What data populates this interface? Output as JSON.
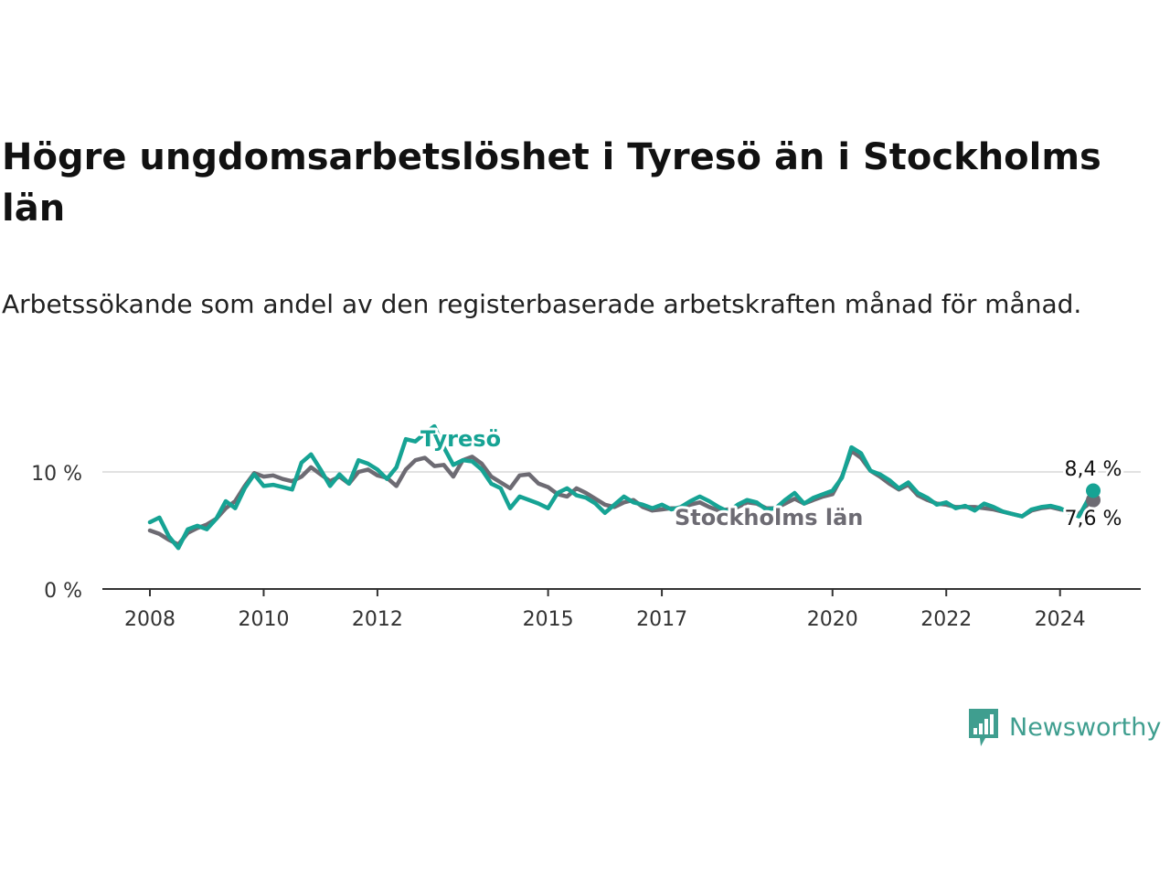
{
  "header": {
    "title": "Högre ungdomsarbetslöshet i Tyresö än i Stockholms län",
    "subtitle": "Arbetssökande som andel av den registerbaserade arbetskraften månad för månad."
  },
  "brand": {
    "name": "Newsworthy",
    "icon": "newsworthy-logo-icon",
    "color": "#3f9e8f"
  },
  "chart_data": {
    "type": "line",
    "x_ticks": [
      "2008",
      "2010",
      "2012",
      "2015",
      "2017",
      "2020",
      "2022",
      "2024"
    ],
    "y_ticks": [
      "0 %",
      "10 %"
    ],
    "ylim": [
      0,
      14
    ],
    "grid": true,
    "series": [
      {
        "name": "Tyresö",
        "color": "#16a394",
        "end_label": "8,4 %",
        "points": [
          [
            "2008-01",
            5.7
          ],
          [
            "2008-03",
            6.1
          ],
          [
            "2008-05",
            4.5
          ],
          [
            "2008-07",
            3.5
          ],
          [
            "2008-09",
            5.1
          ],
          [
            "2008-11",
            5.4
          ],
          [
            "2009-01",
            5.1
          ],
          [
            "2009-03",
            6.0
          ],
          [
            "2009-05",
            7.5
          ],
          [
            "2009-07",
            6.9
          ],
          [
            "2009-09",
            8.6
          ],
          [
            "2009-11",
            9.8
          ],
          [
            "2010-01",
            8.8
          ],
          [
            "2010-03",
            8.9
          ],
          [
            "2010-05",
            8.7
          ],
          [
            "2010-07",
            8.5
          ],
          [
            "2010-09",
            10.8
          ],
          [
            "2010-11",
            11.5
          ],
          [
            "2011-01",
            10.2
          ],
          [
            "2011-03",
            8.8
          ],
          [
            "2011-05",
            9.8
          ],
          [
            "2011-07",
            9.0
          ],
          [
            "2011-09",
            11.0
          ],
          [
            "2011-11",
            10.7
          ],
          [
            "2012-01",
            10.2
          ],
          [
            "2012-03",
            9.4
          ],
          [
            "2012-05",
            10.4
          ],
          [
            "2012-07",
            12.8
          ],
          [
            "2012-09",
            12.6
          ],
          [
            "2012-11",
            13.3
          ],
          [
            "2013-01",
            13.9
          ],
          [
            "2013-03",
            12.1
          ],
          [
            "2013-05",
            10.6
          ],
          [
            "2013-07",
            11.0
          ],
          [
            "2013-09",
            10.9
          ],
          [
            "2013-11",
            10.2
          ],
          [
            "2014-01",
            9.0
          ],
          [
            "2014-03",
            8.6
          ],
          [
            "2014-05",
            6.9
          ],
          [
            "2014-07",
            7.9
          ],
          [
            "2014-09",
            7.6
          ],
          [
            "2014-11",
            7.3
          ],
          [
            "2015-01",
            6.9
          ],
          [
            "2015-03",
            8.2
          ],
          [
            "2015-05",
            8.6
          ],
          [
            "2015-07",
            8.0
          ],
          [
            "2015-09",
            7.8
          ],
          [
            "2015-11",
            7.3
          ],
          [
            "2016-01",
            6.5
          ],
          [
            "2016-03",
            7.2
          ],
          [
            "2016-05",
            7.9
          ],
          [
            "2016-07",
            7.4
          ],
          [
            "2016-09",
            7.2
          ],
          [
            "2016-11",
            6.9
          ],
          [
            "2017-01",
            7.2
          ],
          [
            "2017-03",
            6.8
          ],
          [
            "2017-05",
            7.0
          ],
          [
            "2017-07",
            7.5
          ],
          [
            "2017-09",
            7.9
          ],
          [
            "2017-11",
            7.5
          ],
          [
            "2018-01",
            7.0
          ],
          [
            "2018-03",
            6.6
          ],
          [
            "2018-05",
            7.2
          ],
          [
            "2018-07",
            7.6
          ],
          [
            "2018-09",
            7.4
          ],
          [
            "2018-11",
            6.8
          ],
          [
            "2019-01",
            6.9
          ],
          [
            "2019-03",
            7.6
          ],
          [
            "2019-05",
            8.2
          ],
          [
            "2019-07",
            7.3
          ],
          [
            "2019-09",
            7.8
          ],
          [
            "2019-11",
            8.1
          ],
          [
            "2020-01",
            8.4
          ],
          [
            "2020-03",
            9.5
          ],
          [
            "2020-05",
            12.1
          ],
          [
            "2020-07",
            11.6
          ],
          [
            "2020-09",
            10.1
          ],
          [
            "2020-11",
            9.8
          ],
          [
            "2021-01",
            9.3
          ],
          [
            "2021-03",
            8.6
          ],
          [
            "2021-05",
            9.1
          ],
          [
            "2021-07",
            8.2
          ],
          [
            "2021-09",
            7.8
          ],
          [
            "2021-11",
            7.2
          ],
          [
            "2022-01",
            7.4
          ],
          [
            "2022-03",
            6.9
          ],
          [
            "2022-05",
            7.1
          ],
          [
            "2022-07",
            6.7
          ],
          [
            "2022-09",
            7.3
          ],
          [
            "2022-11",
            7.0
          ],
          [
            "2023-01",
            6.6
          ],
          [
            "2023-03",
            6.4
          ],
          [
            "2023-05",
            6.2
          ],
          [
            "2023-07",
            6.8
          ],
          [
            "2023-09",
            7.0
          ],
          [
            "2023-11",
            7.1
          ],
          [
            "2024-01",
            6.9
          ],
          [
            "2024-03",
            6.5
          ],
          [
            "2024-05",
            6.2
          ],
          [
            "2024-07",
            7.7
          ],
          [
            "2024-08",
            8.4
          ]
        ]
      },
      {
        "name": "Stockholms län",
        "color": "#6d6b73",
        "end_label": "7,6 %",
        "points": [
          [
            "2008-01",
            5.0
          ],
          [
            "2008-03",
            4.7
          ],
          [
            "2008-05",
            4.2
          ],
          [
            "2008-07",
            3.8
          ],
          [
            "2008-09",
            4.8
          ],
          [
            "2008-11",
            5.2
          ],
          [
            "2009-01",
            5.5
          ],
          [
            "2009-03",
            6.0
          ],
          [
            "2009-05",
            6.9
          ],
          [
            "2009-07",
            7.5
          ],
          [
            "2009-09",
            8.8
          ],
          [
            "2009-11",
            9.9
          ],
          [
            "2010-01",
            9.6
          ],
          [
            "2010-03",
            9.7
          ],
          [
            "2010-05",
            9.4
          ],
          [
            "2010-07",
            9.2
          ],
          [
            "2010-09",
            9.6
          ],
          [
            "2010-11",
            10.4
          ],
          [
            "2011-01",
            9.8
          ],
          [
            "2011-03",
            9.2
          ],
          [
            "2011-05",
            9.6
          ],
          [
            "2011-07",
            9.0
          ],
          [
            "2011-09",
            10.0
          ],
          [
            "2011-11",
            10.2
          ],
          [
            "2012-01",
            9.7
          ],
          [
            "2012-03",
            9.5
          ],
          [
            "2012-05",
            8.8
          ],
          [
            "2012-07",
            10.2
          ],
          [
            "2012-09",
            11.0
          ],
          [
            "2012-11",
            11.2
          ],
          [
            "2013-01",
            10.5
          ],
          [
            "2013-03",
            10.6
          ],
          [
            "2013-05",
            9.6
          ],
          [
            "2013-07",
            11.0
          ],
          [
            "2013-09",
            11.3
          ],
          [
            "2013-11",
            10.7
          ],
          [
            "2014-01",
            9.6
          ],
          [
            "2014-03",
            9.1
          ],
          [
            "2014-05",
            8.6
          ],
          [
            "2014-07",
            9.7
          ],
          [
            "2014-09",
            9.8
          ],
          [
            "2014-11",
            9.0
          ],
          [
            "2015-01",
            8.7
          ],
          [
            "2015-03",
            8.1
          ],
          [
            "2015-05",
            7.9
          ],
          [
            "2015-07",
            8.6
          ],
          [
            "2015-09",
            8.2
          ],
          [
            "2015-11",
            7.7
          ],
          [
            "2016-01",
            7.2
          ],
          [
            "2016-03",
            7.0
          ],
          [
            "2016-05",
            7.4
          ],
          [
            "2016-07",
            7.6
          ],
          [
            "2016-09",
            7.0
          ],
          [
            "2016-11",
            6.7
          ],
          [
            "2017-01",
            6.8
          ],
          [
            "2017-03",
            6.9
          ],
          [
            "2017-05",
            6.9
          ],
          [
            "2017-07",
            7.2
          ],
          [
            "2017-09",
            7.4
          ],
          [
            "2017-11",
            7.0
          ],
          [
            "2018-01",
            6.7
          ],
          [
            "2018-03",
            6.8
          ],
          [
            "2018-05",
            7.0
          ],
          [
            "2018-07",
            7.4
          ],
          [
            "2018-09",
            7.3
          ],
          [
            "2018-11",
            6.9
          ],
          [
            "2019-01",
            6.9
          ],
          [
            "2019-03",
            7.3
          ],
          [
            "2019-05",
            7.7
          ],
          [
            "2019-07",
            7.3
          ],
          [
            "2019-09",
            7.6
          ],
          [
            "2019-11",
            7.9
          ],
          [
            "2020-01",
            8.1
          ],
          [
            "2020-03",
            9.6
          ],
          [
            "2020-05",
            11.8
          ],
          [
            "2020-07",
            11.2
          ],
          [
            "2020-09",
            10.1
          ],
          [
            "2020-11",
            9.6
          ],
          [
            "2021-01",
            9.0
          ],
          [
            "2021-03",
            8.5
          ],
          [
            "2021-05",
            8.9
          ],
          [
            "2021-07",
            8.0
          ],
          [
            "2021-09",
            7.6
          ],
          [
            "2021-11",
            7.3
          ],
          [
            "2022-01",
            7.2
          ],
          [
            "2022-03",
            7.0
          ],
          [
            "2022-05",
            7.0
          ],
          [
            "2022-07",
            7.0
          ],
          [
            "2022-09",
            6.9
          ],
          [
            "2022-11",
            6.8
          ],
          [
            "2023-01",
            6.6
          ],
          [
            "2023-03",
            6.4
          ],
          [
            "2023-05",
            6.2
          ],
          [
            "2023-07",
            6.7
          ],
          [
            "2023-09",
            6.9
          ],
          [
            "2023-11",
            7.0
          ],
          [
            "2024-01",
            6.8
          ],
          [
            "2024-03",
            6.7
          ],
          [
            "2024-05",
            6.4
          ],
          [
            "2024-07",
            7.3
          ],
          [
            "2024-08",
            7.6
          ]
        ]
      }
    ]
  }
}
